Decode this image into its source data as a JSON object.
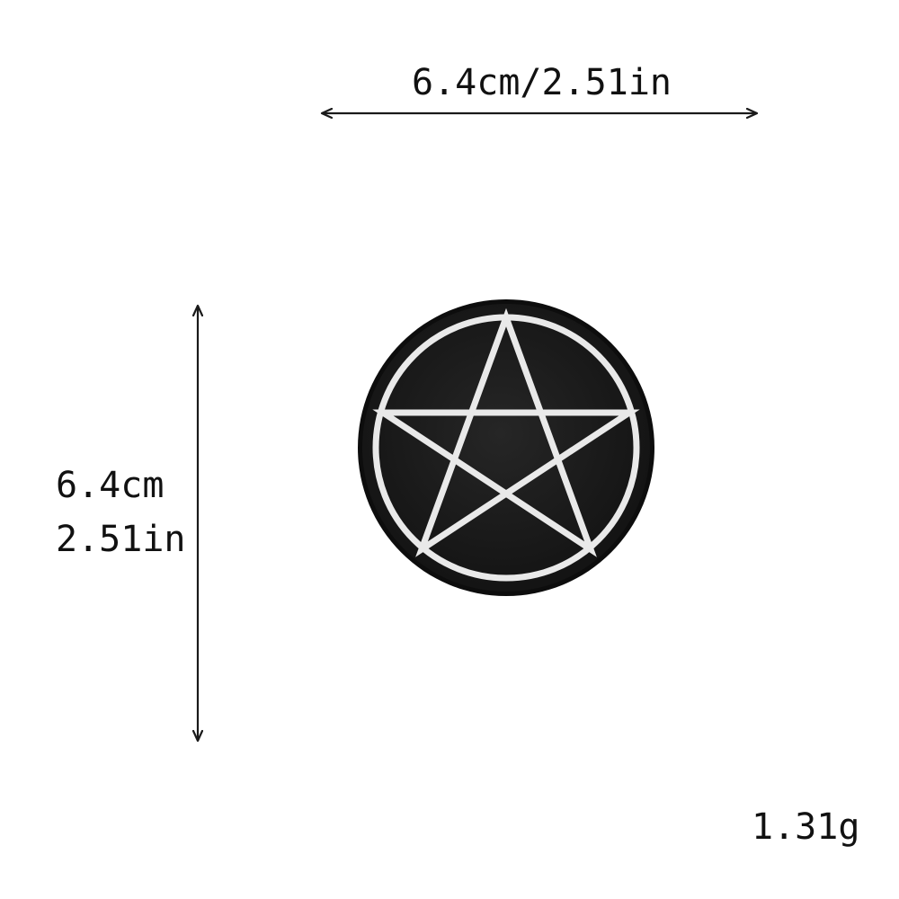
{
  "dimensions": {
    "width_label": "6.4cm/2.51in",
    "height_cm": "6.4cm",
    "height_in": "2.51in",
    "weight": "1.31g"
  },
  "patch": {
    "shape": "circle",
    "motif": "pentagram",
    "colors": {
      "background": "#1b1b1b",
      "stitching": "#e9e9e9",
      "edge": "#0d0d0d"
    }
  },
  "colors": {
    "page_background": "#ffffff",
    "annotation": "#1a1a1a"
  }
}
